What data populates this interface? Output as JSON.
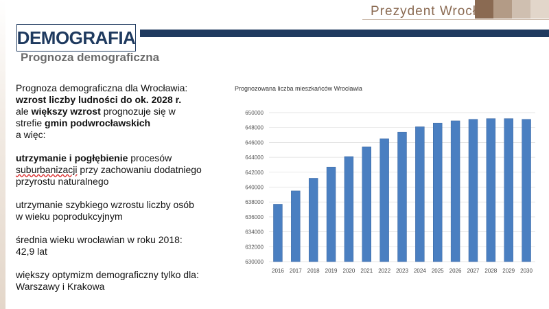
{
  "header": {
    "brand": "Prezydent Wrocławia",
    "section_title": "DEMOGRAFIA",
    "subtitle": "Prognoza demograficzna",
    "brand_swatch_colors": [
      "#8a6a52",
      "#b39b86",
      "#cfbfb0",
      "#e2d6ca"
    ]
  },
  "body": {
    "l1": "Prognoza demograficzna dla Wrocławia:",
    "l2": "wzrost liczby ludności do ok. 2028 r.",
    "l3a": "ale ",
    "l3b": "większy wzrost",
    "l3c": " prognozuje się w",
    "l4a": "strefie ",
    "l4b": "gmin podwrocławskich",
    "l5": "a więc:",
    "l6a": "utrzymanie i pogłębienie",
    "l6b": " procesów",
    "l7a": "suburbanizacji",
    "l7b": " przy zachowaniu dodatniego",
    "l8": "przyrostu naturalnego",
    "l9": "utrzymanie szybkiego wzrostu liczby osób",
    "l10": "w wieku poprodukcyjnym",
    "l11": "średnia wieku wrocławian w roku 2018:",
    "l12": "42,9 lat",
    "l13": "większy optymizm demograficzny tylko dla:",
    "l14": "Warszawy i Krakowa"
  },
  "chart_data": {
    "type": "bar",
    "title": "Prognozowana liczba mieszkańców Wrocławia",
    "categories": [
      "2016",
      "2017",
      "2018",
      "2019",
      "2020",
      "2021",
      "2022",
      "2023",
      "2024",
      "2025",
      "2026",
      "2027",
      "2028",
      "2029",
      "2030"
    ],
    "values": [
      637700,
      639500,
      641200,
      642700,
      644100,
      645400,
      646500,
      647400,
      648100,
      648600,
      648900,
      649100,
      649200,
      649200,
      649100
    ],
    "ylim": [
      630000,
      650000
    ],
    "yticks": [
      "630000",
      "632000",
      "634000",
      "636000",
      "638000",
      "640000",
      "642000",
      "644000",
      "646000",
      "648000",
      "650000"
    ],
    "grid": true,
    "bar_color": "#4a7fc1",
    "xlabel": "",
    "ylabel": ""
  }
}
